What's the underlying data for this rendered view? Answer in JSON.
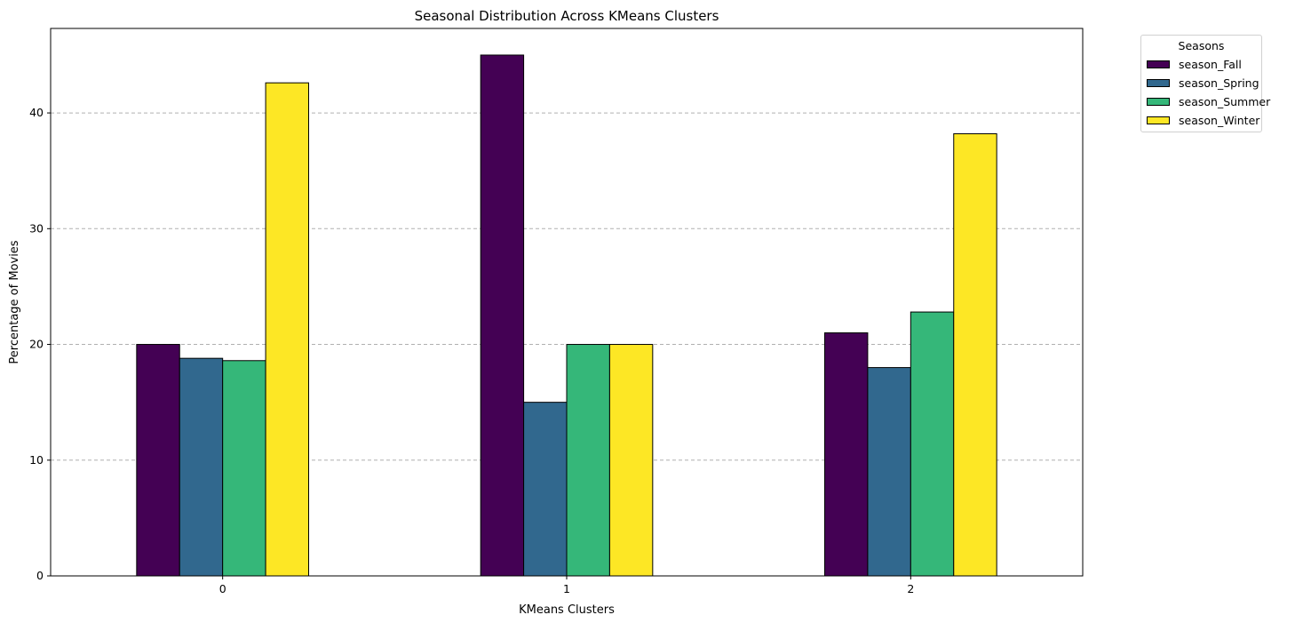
{
  "chart_data": {
    "type": "bar",
    "title": "Seasonal Distribution Across KMeans Clusters",
    "xlabel": "KMeans Clusters",
    "ylabel": "Percentage of Movies",
    "categories": [
      "0",
      "1",
      "2"
    ],
    "ylim": [
      0,
      47.3
    ],
    "yticks": [
      "0",
      "10",
      "20",
      "30",
      "40"
    ],
    "grid": "y-dashed",
    "legend_title": "Seasons",
    "legend_position": "outside-top-right",
    "series": [
      {
        "name": "season_Fall",
        "color": "#440154",
        "values": [
          20.0,
          45.0,
          21.0
        ]
      },
      {
        "name": "season_Spring",
        "color": "#31688e",
        "values": [
          18.8,
          15.0,
          18.0
        ]
      },
      {
        "name": "season_Summer",
        "color": "#35b779",
        "values": [
          18.6,
          20.0,
          22.8
        ]
      },
      {
        "name": "season_Winter",
        "color": "#fde725",
        "values": [
          42.6,
          20.0,
          38.2
        ]
      }
    ]
  }
}
